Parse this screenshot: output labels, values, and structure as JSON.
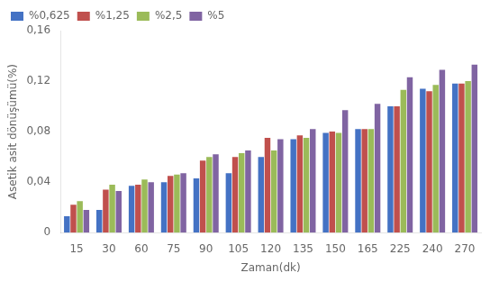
{
  "chart_data": {
    "type": "bar",
    "xlabel": "Zaman(dk)",
    "ylabel": "Asetik asit dönüşümü(%)",
    "categories": [
      "15",
      "30",
      "60",
      "75",
      "90",
      "105",
      "120",
      "135",
      "150",
      "165",
      "225",
      "240",
      "270"
    ],
    "series": [
      {
        "name": "%0,625",
        "color": "#4472C4",
        "values": [
          0.013,
          0.018,
          0.037,
          0.04,
          0.043,
          0.047,
          0.06,
          0.074,
          0.079,
          0.082,
          0.1,
          0.114,
          0.118
        ]
      },
      {
        "name": "%1,25",
        "color": "#C0504D",
        "values": [
          0.022,
          0.034,
          0.038,
          0.045,
          0.057,
          0.06,
          0.075,
          0.077,
          0.08,
          0.082,
          0.1,
          0.112,
          0.118
        ]
      },
      {
        "name": "%2,5",
        "color": "#9BBB59",
        "values": [
          0.025,
          0.038,
          0.042,
          0.046,
          0.06,
          0.063,
          0.065,
          0.075,
          0.079,
          0.082,
          0.113,
          0.117,
          0.12
        ]
      },
      {
        "name": "%5",
        "color": "#8064A2",
        "values": [
          0.018,
          0.033,
          0.04,
          0.047,
          0.062,
          0.065,
          0.074,
          0.082,
          0.097,
          0.102,
          0.123,
          0.129,
          0.133
        ]
      }
    ],
    "ylim": [
      0,
      0.16
    ],
    "yticks": [
      0,
      {
        "value": 0.04,
        "label": "0,04"
      },
      {
        "value": 0.08,
        "label": "0,08"
      },
      {
        "value": 0.12,
        "label": "0,12"
      },
      {
        "value": 0.16,
        "label": "0,16"
      }
    ],
    "grid": false,
    "legend": "upper left"
  }
}
